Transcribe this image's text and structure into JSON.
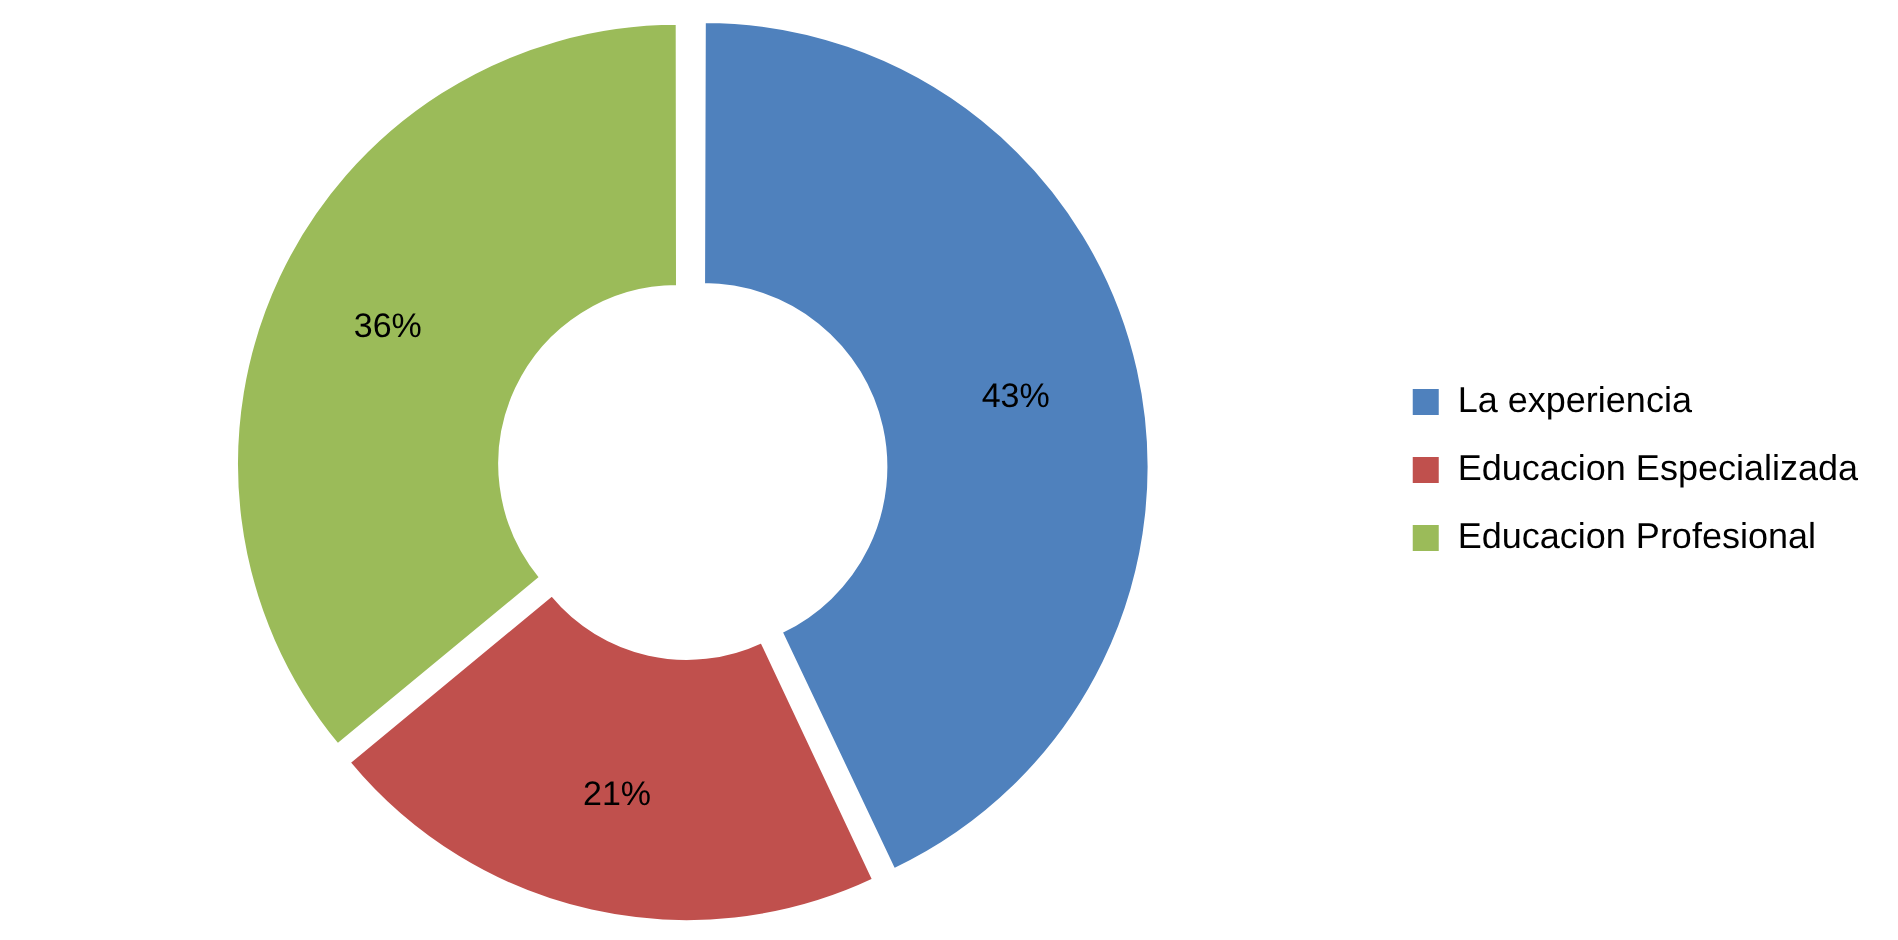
{
  "chart_data": {
    "type": "donut",
    "categories": [
      "La experiencia",
      "Educacion Especializada",
      "Educacion Profesional"
    ],
    "values": [
      43,
      21,
      36
    ],
    "value_labels": [
      "43%",
      "21%",
      "36%"
    ],
    "colors": [
      "#4f81bd",
      "#c0504d",
      "#9bbb59"
    ],
    "legend": "right"
  }
}
